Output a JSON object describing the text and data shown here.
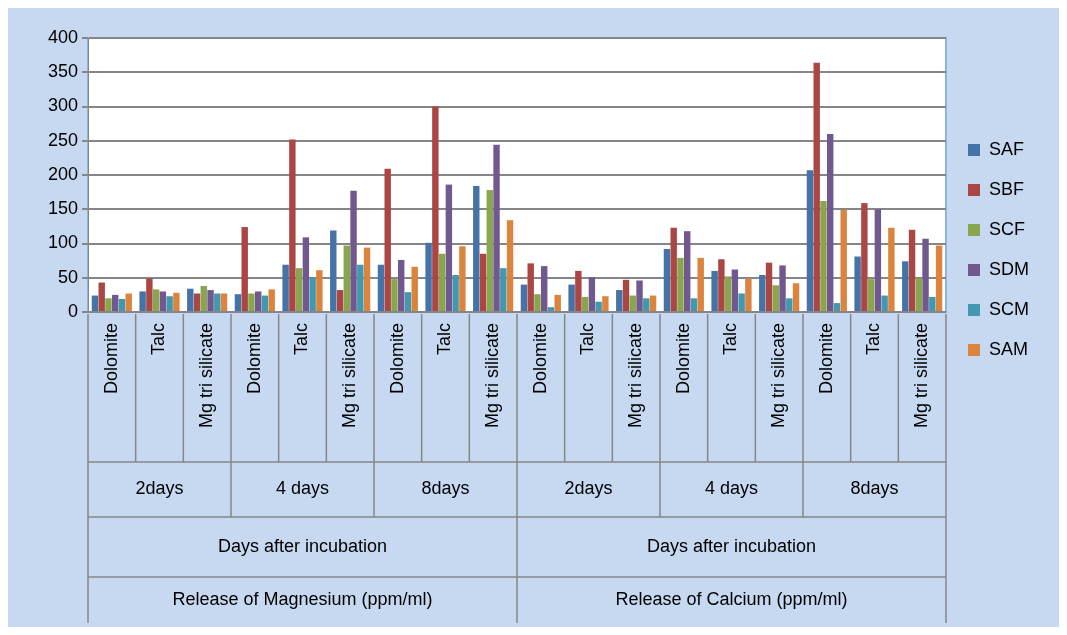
{
  "chart_data": {
    "type": "bar",
    "categories": [
      "Dolomite",
      "Talc",
      "Mg tri silicate",
      "Dolomite",
      "Talc",
      "Mg tri silicate",
      "Dolomite",
      "Talc",
      "Mg tri silicate",
      "Dolomite",
      "Talc",
      "Mg tri silicate",
      "Dolomite",
      "Talc",
      "Mg tri silicate",
      "Dolomite",
      "Talc",
      "Mg tri silicate"
    ],
    "series": [
      {
        "name": "SAF",
        "color": "#4572a7",
        "values": [
          24,
          30,
          34,
          26,
          69,
          119,
          69,
          101,
          184,
          40,
          40,
          32,
          92,
          60,
          54,
          207,
          81,
          74
        ]
      },
      {
        "name": "SBF",
        "color": "#aa4643",
        "values": [
          43,
          49,
          27,
          124,
          252,
          32,
          209,
          300,
          85,
          71,
          60,
          47,
          123,
          77,
          72,
          364,
          159,
          120
        ]
      },
      {
        "name": "SCF",
        "color": "#89a54e",
        "values": [
          20,
          33,
          38,
          27,
          64,
          97,
          48,
          85,
          178,
          26,
          22,
          24,
          79,
          52,
          39,
          162,
          48,
          49
        ]
      },
      {
        "name": "SDM",
        "color": "#71588f",
        "values": [
          25,
          30,
          32,
          30,
          109,
          177,
          76,
          186,
          244,
          67,
          51,
          46,
          118,
          62,
          68,
          260,
          150,
          107
        ]
      },
      {
        "name": "SCM",
        "color": "#4198af",
        "values": [
          19,
          23,
          27,
          24,
          50,
          69,
          29,
          54,
          64,
          7,
          15,
          20,
          20,
          27,
          20,
          13,
          24,
          22
        ]
      },
      {
        "name": "SAM",
        "color": "#db843d",
        "values": [
          27,
          28,
          27,
          33,
          61,
          94,
          66,
          96,
          134,
          25,
          23,
          24,
          79,
          49,
          42,
          149,
          123,
          97
        ]
      }
    ],
    "ylim": [
      0,
      400
    ],
    "yticks": [
      0,
      50,
      100,
      150,
      200,
      250,
      300,
      350,
      400
    ],
    "grid": "y",
    "legend": "right",
    "annotations": [
      "2days",
      "4 days",
      "8days",
      "2days",
      "4 days",
      "8days",
      "Days after incubation",
      "Days after incubation",
      "Release of Magnesium (ppm/ml)",
      "Release of Calcium (ppm/ml)"
    ]
  }
}
